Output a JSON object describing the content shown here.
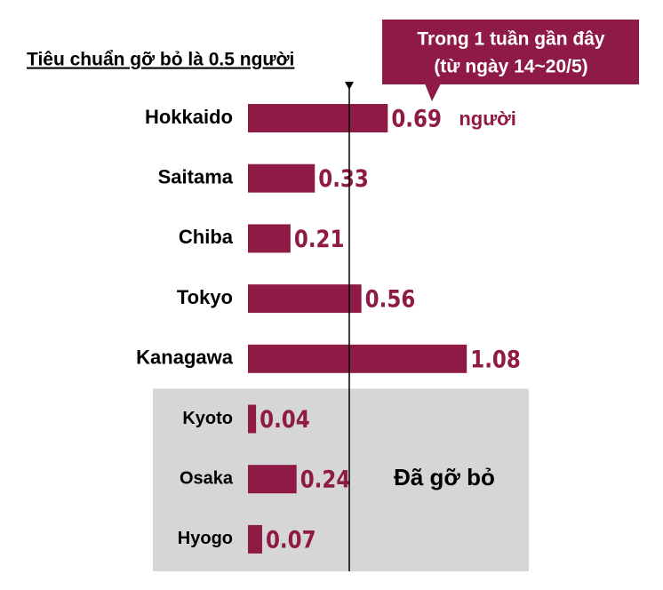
{
  "chart_data": {
    "type": "hbar",
    "title": "Tiêu chuẩn gỡ bỏ là 0.5 người",
    "annotation": [
      "Trong 1 tuần gần đây",
      "(từ ngày 14~20/5)"
    ],
    "unit": "người",
    "categories": [
      "Hokkaido",
      "Saitama",
      "Chiba",
      "Tokyo",
      "Kanagawa",
      "Kyoto",
      "Osaka",
      "Hyogo"
    ],
    "values": [
      0.69,
      0.33,
      0.21,
      0.56,
      1.08,
      0.04,
      0.24,
      0.07
    ],
    "color": "#8e1a45",
    "threshold": 0.5,
    "highlight_indices": [
      5,
      6,
      7
    ],
    "highlight_label": "Đã gỡ bỏ",
    "highlight_color": "#d6d6d6"
  }
}
